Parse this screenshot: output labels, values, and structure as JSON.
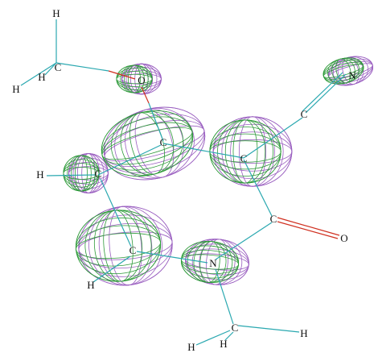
{
  "atoms": [
    {
      "label": "H"
    },
    {
      "label": "C"
    },
    {
      "label": "H"
    },
    {
      "label": "H"
    },
    {
      "label": "O"
    },
    {
      "label": "N"
    },
    {
      "label": "C"
    },
    {
      "label": "C"
    },
    {
      "label": "C"
    },
    {
      "label": "H"
    },
    {
      "label": "C"
    },
    {
      "label": "C"
    },
    {
      "label": "O"
    },
    {
      "label": "C"
    },
    {
      "label": "N"
    },
    {
      "label": "H"
    },
    {
      "label": "C"
    },
    {
      "label": "H"
    },
    {
      "label": "H"
    },
    {
      "label": "H"
    }
  ]
}
